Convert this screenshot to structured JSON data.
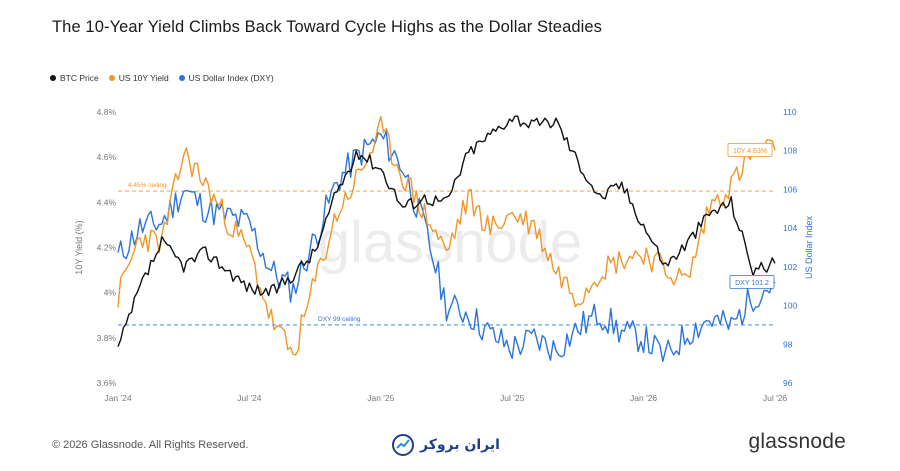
{
  "title": "The 10-Year Yield Climbs Back Toward Cycle Highs as the Dollar Steadies",
  "legend": [
    {
      "label": "BTC Price",
      "color": "#111111"
    },
    {
      "label": "US 10Y Yield",
      "color": "#f0962a"
    },
    {
      "label": "US Dollar Index (DXY)",
      "color": "#2d74da"
    }
  ],
  "footer": {
    "copyright": "© 2026 Glassnode. All Rights Reserved.",
    "partner": "ایران بروکر",
    "brand": "glassnode"
  },
  "watermark": "glassnode",
  "chart_data": {
    "type": "line",
    "x_ticks": [
      "Jan '24",
      "Jul '24",
      "Jan '25",
      "Jul '25",
      "Jan '26",
      "Jul '26"
    ],
    "x_range": [
      "2024-01",
      "2026-07"
    ],
    "y_left": {
      "label": "10Y Yield (%)",
      "ticks": [
        "3.6%",
        "3.8%",
        "4%",
        "4.2%",
        "4.4%",
        "4.6%",
        "4.8%"
      ],
      "range": [
        3.6,
        4.8
      ]
    },
    "y_right": {
      "label": "US Dollar Index",
      "ticks": [
        "96",
        "98",
        "100",
        "102",
        "104",
        "106",
        "108",
        "110"
      ],
      "range": [
        96,
        110
      ]
    },
    "reference_lines": [
      {
        "label": "4.45% ceiling",
        "axis": "left",
        "value": 4.45,
        "color": "#f0962a"
      },
      {
        "label": "DXY 99 ceiling",
        "axis": "right",
        "value": 99,
        "color": "#2d74da"
      }
    ],
    "annotations": [
      {
        "label": "10Y 4.63%",
        "series": "US 10Y Yield"
      },
      {
        "label": "DXY 101.2",
        "series": "US Dollar Index (DXY)"
      }
    ],
    "series": [
      {
        "name": "US 10Y Yield",
        "axis": "left",
        "color": "#f0962a",
        "months": [
          "2024-01",
          "2024-02",
          "2024-03",
          "2024-04",
          "2024-05",
          "2024-06",
          "2024-07",
          "2024-08",
          "2024-09",
          "2024-10",
          "2024-11",
          "2024-12",
          "2025-01",
          "2025-02",
          "2025-03",
          "2025-04",
          "2025-05",
          "2025-06",
          "2025-07",
          "2025-08",
          "2025-09",
          "2025-10",
          "2025-11",
          "2025-12",
          "2026-01",
          "2026-02",
          "2026-03",
          "2026-04",
          "2026-05",
          "2026-06",
          "2026-07"
        ],
        "values": [
          3.98,
          4.25,
          4.22,
          4.62,
          4.48,
          4.32,
          4.18,
          3.88,
          3.72,
          4.05,
          4.35,
          4.52,
          4.72,
          4.52,
          4.35,
          4.18,
          4.42,
          4.28,
          4.35,
          4.3,
          4.1,
          3.98,
          4.1,
          4.15,
          4.18,
          4.1,
          4.05,
          4.38,
          4.48,
          4.62,
          4.63
        ]
      },
      {
        "name": "US Dollar Index (DXY)",
        "axis": "right",
        "color": "#2d74da",
        "months": [
          "2024-01",
          "2024-02",
          "2024-03",
          "2024-04",
          "2024-05",
          "2024-06",
          "2024-07",
          "2024-08",
          "2024-09",
          "2024-10",
          "2024-11",
          "2024-12",
          "2025-01",
          "2025-02",
          "2025-03",
          "2025-04",
          "2025-05",
          "2025-06",
          "2025-07",
          "2025-08",
          "2025-09",
          "2025-10",
          "2025-11",
          "2025-12",
          "2026-01",
          "2026-02",
          "2026-03",
          "2026-04",
          "2026-05",
          "2026-06",
          "2026-07"
        ],
        "values": [
          102.5,
          104.0,
          104.3,
          106.0,
          105.0,
          104.6,
          104.2,
          101.8,
          100.8,
          103.5,
          106.4,
          107.8,
          108.7,
          107.2,
          104.0,
          100.0,
          99.6,
          98.5,
          97.8,
          98.3,
          97.7,
          98.8,
          99.6,
          98.6,
          98.3,
          97.3,
          98.6,
          99.3,
          98.9,
          100.5,
          101.2
        ]
      },
      {
        "name": "BTC Price",
        "axis": "none",
        "color": "#111111",
        "months": [
          "2024-01",
          "2024-02",
          "2024-03",
          "2024-04",
          "2024-05",
          "2024-06",
          "2024-07",
          "2024-08",
          "2024-09",
          "2024-10",
          "2024-11",
          "2024-12",
          "2025-01",
          "2025-02",
          "2025-03",
          "2025-04",
          "2025-05",
          "2025-06",
          "2025-07",
          "2025-08",
          "2025-09",
          "2025-10",
          "2025-11",
          "2025-12",
          "2026-01",
          "2026-02",
          "2026-03",
          "2026-04",
          "2026-05",
          "2026-06",
          "2026-07"
        ],
        "values": [
          3.75,
          4.02,
          4.22,
          4.12,
          4.18,
          4.1,
          4.02,
          4.0,
          4.08,
          4.18,
          4.45,
          4.62,
          4.55,
          4.38,
          4.42,
          4.4,
          4.62,
          4.7,
          4.78,
          4.74,
          4.76,
          4.58,
          4.42,
          4.48,
          4.3,
          4.12,
          4.22,
          4.35,
          4.4,
          4.1,
          4.13
        ]
      }
    ]
  }
}
